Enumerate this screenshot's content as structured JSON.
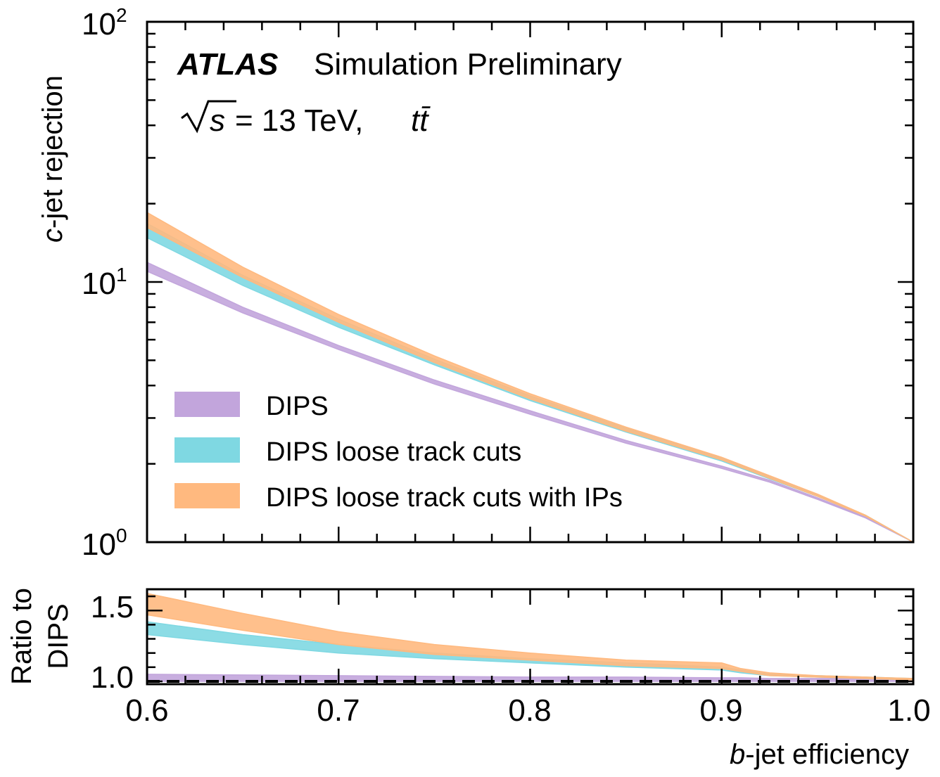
{
  "header": {
    "experiment": "ATLAS",
    "status": "Simulation Preliminary",
    "energy_sqrt": "s",
    "energy_text": " = 13 TeV, ",
    "process": "tt̄"
  },
  "colors": {
    "DIPS": "#c2a5dc",
    "DIPS loose track cuts": "#7fd8e2",
    "DIPS loose track cuts with IPs": "#ffb97f",
    "reference_line": "#000000"
  },
  "chart_data": [
    {
      "type": "area",
      "panel": "main",
      "ylabel_italic": "c",
      "ylabel_rest": "-jet rejection",
      "yscale": "log",
      "xlim": [
        0.6,
        1.0
      ],
      "ylim": [
        1,
        100
      ],
      "ytick_base": "10",
      "ytick_exponents": [
        "0",
        "1",
        "2"
      ],
      "legend_position": "lower-left",
      "x": [
        0.6,
        0.65,
        0.7,
        0.75,
        0.8,
        0.85,
        0.9,
        0.925,
        0.95,
        0.975,
        1.0
      ],
      "series": [
        {
          "name": "DIPS",
          "values_low": [
            11.0,
            7.6,
            5.5,
            4.05,
            3.1,
            2.4,
            1.92,
            1.7,
            1.46,
            1.24,
            1.0
          ],
          "values_high": [
            11.9,
            8.0,
            5.7,
            4.2,
            3.2,
            2.46,
            1.96,
            1.73,
            1.48,
            1.25,
            1.0
          ]
        },
        {
          "name": "DIPS loose track cuts",
          "values_low": [
            14.8,
            9.7,
            6.7,
            4.8,
            3.5,
            2.65,
            2.05,
            1.75,
            1.5,
            1.26,
            1.0
          ],
          "values_high": [
            16.8,
            10.6,
            7.2,
            5.05,
            3.65,
            2.74,
            2.1,
            1.79,
            1.52,
            1.27,
            1.0
          ]
        },
        {
          "name": "DIPS loose track cuts with IPs",
          "values_low": [
            16.2,
            10.4,
            7.0,
            4.9,
            3.55,
            2.67,
            2.07,
            1.76,
            1.5,
            1.26,
            1.0
          ],
          "values_high": [
            18.5,
            11.4,
            7.5,
            5.2,
            3.72,
            2.77,
            2.12,
            1.8,
            1.53,
            1.27,
            1.0
          ]
        }
      ]
    },
    {
      "type": "area",
      "panel": "ratio",
      "ylabel_line1": "Ratio to",
      "ylabel_line2": "DIPS",
      "xlabel_italic": "b",
      "xlabel_rest": "-jet efficiency",
      "xlim": [
        0.6,
        1.0
      ],
      "ylim": [
        0.98,
        1.65
      ],
      "xtick_labels": [
        "0.6",
        "0.7",
        "0.8",
        "0.9",
        "1.0"
      ],
      "ytick_labels": [
        "1.0",
        "1.5"
      ],
      "reference_line": 1.0,
      "x": [
        0.6,
        0.65,
        0.7,
        0.75,
        0.8,
        0.85,
        0.9,
        0.91,
        0.925,
        0.95,
        0.975,
        1.0
      ],
      "series": [
        {
          "name": "DIPS",
          "values_low": [
            1.0,
            1.0,
            1.0,
            1.0,
            1.0,
            1.0,
            1.0,
            1.0,
            1.0,
            1.0,
            1.0,
            1.0
          ],
          "values_high": [
            1.05,
            1.045,
            1.04,
            1.035,
            1.03,
            1.03,
            1.025,
            1.025,
            1.02,
            1.02,
            1.02,
            1.02
          ]
        },
        {
          "name": "DIPS loose track cuts",
          "values_low": [
            1.33,
            1.26,
            1.2,
            1.16,
            1.13,
            1.1,
            1.08,
            1.06,
            1.04,
            1.03,
            1.02,
            1.01
          ],
          "values_high": [
            1.42,
            1.33,
            1.26,
            1.2,
            1.16,
            1.13,
            1.1,
            1.08,
            1.05,
            1.04,
            1.03,
            1.02
          ]
        },
        {
          "name": "DIPS loose track cuts with IPs",
          "values_low": [
            1.47,
            1.36,
            1.26,
            1.19,
            1.15,
            1.11,
            1.09,
            1.07,
            1.04,
            1.03,
            1.02,
            1.01
          ],
          "values_high": [
            1.62,
            1.48,
            1.35,
            1.26,
            1.2,
            1.15,
            1.13,
            1.09,
            1.06,
            1.04,
            1.03,
            1.02
          ]
        }
      ]
    }
  ]
}
